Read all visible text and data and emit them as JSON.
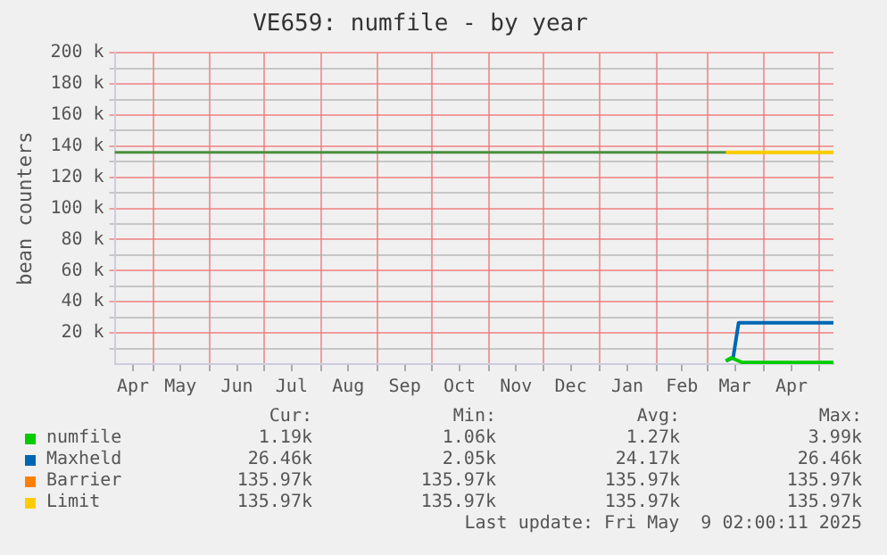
{
  "chart_data": {
    "type": "line",
    "title": "VE659: numfile - by year",
    "ylabel": "bean counters",
    "xlim": [
      "2024-04-10",
      "2025-05-09"
    ],
    "xticks": [
      {
        "value": "2024-04-20",
        "label": "Apr"
      },
      {
        "value": "2024-05-01",
        "label": null
      },
      {
        "value": "2024-05-16",
        "label": "May"
      },
      {
        "value": "2024-06-01",
        "label": null
      },
      {
        "value": "2024-06-16",
        "label": "Jun"
      },
      {
        "value": "2024-07-01",
        "label": null
      },
      {
        "value": "2024-07-16",
        "label": "Jul"
      },
      {
        "value": "2024-08-01",
        "label": null
      },
      {
        "value": "2024-08-16",
        "label": "Aug"
      },
      {
        "value": "2024-09-01",
        "label": null
      },
      {
        "value": "2024-09-16",
        "label": "Sep"
      },
      {
        "value": "2024-10-01",
        "label": null
      },
      {
        "value": "2024-10-16",
        "label": "Oct"
      },
      {
        "value": "2024-11-01",
        "label": null
      },
      {
        "value": "2024-11-16",
        "label": "Nov"
      },
      {
        "value": "2024-12-01",
        "label": null
      },
      {
        "value": "2024-12-16",
        "label": "Dec"
      },
      {
        "value": "2025-01-01",
        "label": null
      },
      {
        "value": "2025-01-16",
        "label": "Jan"
      },
      {
        "value": "2025-02-01",
        "label": null
      },
      {
        "value": "2025-02-15",
        "label": "Feb"
      },
      {
        "value": "2025-03-01",
        "label": null
      },
      {
        "value": "2025-03-16",
        "label": "Mar"
      },
      {
        "value": "2025-04-01",
        "label": null
      },
      {
        "value": "2025-04-16",
        "label": "Apr"
      },
      {
        "value": "2025-05-01",
        "label": null
      }
    ],
    "ylim": [
      0,
      200000
    ],
    "yticks": [
      {
        "value": 10000,
        "label": null
      },
      {
        "value": 20000,
        "label": "20 k"
      },
      {
        "value": 30000,
        "label": null
      },
      {
        "value": 40000,
        "label": "40 k"
      },
      {
        "value": 50000,
        "label": null
      },
      {
        "value": 60000,
        "label": "60 k"
      },
      {
        "value": 70000,
        "label": null
      },
      {
        "value": 80000,
        "label": "80 k"
      },
      {
        "value": 90000,
        "label": null
      },
      {
        "value": 100000,
        "label": "100 k"
      },
      {
        "value": 110000,
        "label": null
      },
      {
        "value": 120000,
        "label": "120 k"
      },
      {
        "value": 130000,
        "label": null
      },
      {
        "value": 140000,
        "label": "140 k"
      },
      {
        "value": 150000,
        "label": null
      },
      {
        "value": 160000,
        "label": "160 k"
      },
      {
        "value": 170000,
        "label": null
      },
      {
        "value": 180000,
        "label": "180 k"
      },
      {
        "value": 190000,
        "label": null
      },
      {
        "value": 200000,
        "label": "200 k"
      }
    ],
    "grid": true,
    "legend": "bottom",
    "marker": "none",
    "line_style": "solid",
    "ref_lines": [
      {
        "axis": "y",
        "value": 136000,
        "color": "#4a8f3a"
      }
    ],
    "series": [
      {
        "name": "numfile",
        "color": "#00cc00",
        "x": [
          "2025-03-11",
          "2025-03-14",
          "2025-03-20",
          "2025-05-09"
        ],
        "values": [
          2000,
          4000,
          1000,
          1000
        ]
      },
      {
        "name": "Maxheld",
        "color": "#0066b3",
        "x": [
          "2025-03-11",
          "2025-03-15",
          "2025-03-18",
          "2025-05-09"
        ],
        "values": [
          2000,
          4000,
          26500,
          26500
        ]
      },
      {
        "name": "Barrier",
        "color": "#ff8000"
      },
      {
        "name": "Limit",
        "color": "#ffcc00",
        "x": [
          "2025-03-11",
          "2025-05-09"
        ],
        "values": [
          136000,
          136000
        ]
      }
    ],
    "annotations": [
      "Cur:",
      "Min:",
      "Avg:",
      "Max:",
      "1.19k",
      "1.06k",
      "1.27k",
      "3.99k",
      "26.46k",
      "2.05k",
      "24.17k",
      "26.46k",
      "135.97k",
      "135.97k",
      "135.97k",
      "135.97k",
      "135.97k",
      "135.97k",
      "135.97k",
      "135.97k",
      "Last update: Fri May  9 02:00:11 2025"
    ]
  }
}
